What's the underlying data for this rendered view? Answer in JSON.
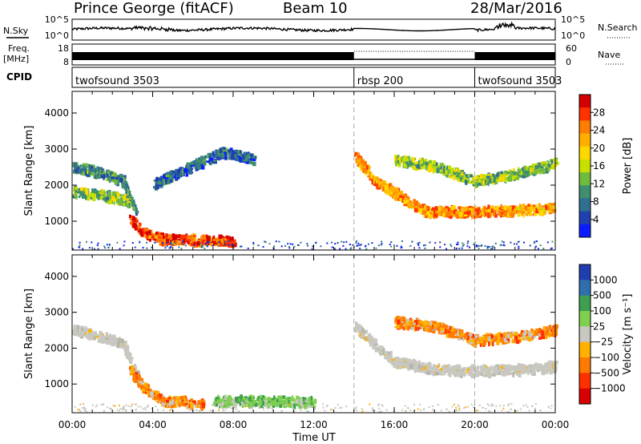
{
  "header": {
    "station": "Prince George (fitACF)",
    "beam": "Beam 10",
    "date": "28/Mar/2016"
  },
  "strip": {
    "nsky_label": "N.Sky",
    "nsky_ticks": [
      "10^5",
      "10^0"
    ],
    "nsearch_label": "N.Search",
    "freq_label_top": "Freq.",
    "freq_label_unit": "[MHz]",
    "freq_ticks": [
      "18",
      "8"
    ],
    "nave_ticks": [
      "60",
      "0"
    ],
    "nave_label": "Nave",
    "cpid_label": "CPID",
    "cpid_segments": [
      {
        "name": "twofsound 3503",
        "start_h": 0,
        "end_h": 14
      },
      {
        "name": "rbsp 200",
        "start_h": 14,
        "end_h": 20
      },
      {
        "name": "twofsound 3503",
        "start_h": 20,
        "end_h": 24
      }
    ]
  },
  "chart_data": [
    {
      "type": "heatmap",
      "title": "",
      "xlabel": "Time UT",
      "ylabel": "Slant Range [km]",
      "xlim": [
        0,
        24
      ],
      "ylim": [
        200,
        4600
      ],
      "x_ticks": [
        "00:00",
        "04:00",
        "08:00",
        "12:00",
        "16:00",
        "20:00",
        "00:00"
      ],
      "y_ticks": [
        1000,
        2000,
        3000,
        4000
      ],
      "colorbar_label": "Power [dB]",
      "colorbar_ticks": [
        "28",
        "24",
        "20",
        "16",
        "12",
        "8",
        "4"
      ],
      "colorbar_colors": [
        "#d40000",
        "#ff3200",
        "#ff7d00",
        "#ffae00",
        "#ffd800",
        "#c8e000",
        "#6fbb3d",
        "#3f8f6f",
        "#2f6f8f",
        "#2040b0",
        "#0a1cff"
      ],
      "scatter_bands": [
        {
          "t": [
            0.0,
            1.5,
            2.5,
            3.2
          ],
          "r": [
            2500,
            2300,
            2100,
            1200
          ],
          "value": 10
        },
        {
          "t": [
            0.0,
            1.5,
            2.8
          ],
          "r": [
            1800,
            1700,
            1550
          ],
          "value": 14
        },
        {
          "t": [
            2.8,
            3.5,
            4.5,
            6.5,
            8.0
          ],
          "r": [
            1100,
            650,
            480,
            460,
            440
          ],
          "value": 26
        },
        {
          "t": [
            4.0,
            5.5,
            7.5,
            9.0
          ],
          "r": [
            2000,
            2400,
            2900,
            2700
          ],
          "value": 8
        },
        {
          "t": [
            14.0,
            15.0,
            16.5,
            17.5,
            20.0,
            23.0,
            24.0
          ],
          "r": [
            2800,
            2100,
            1600,
            1250,
            1250,
            1300,
            1400
          ],
          "value": 22
        },
        {
          "t": [
            16.0,
            18.0,
            20.0,
            22.0,
            24.0
          ],
          "r": [
            2700,
            2500,
            2100,
            2300,
            2600
          ],
          "value": 14
        }
      ]
    },
    {
      "type": "heatmap",
      "title": "",
      "xlabel": "Time UT",
      "ylabel": "Slant Range [km]",
      "xlim": [
        0,
        24
      ],
      "ylim": [
        200,
        4600
      ],
      "x_ticks": [
        "00:00",
        "04:00",
        "08:00",
        "12:00",
        "16:00",
        "20:00",
        "00:00"
      ],
      "y_ticks": [
        1000,
        2000,
        3000,
        4000
      ],
      "colorbar_label": "Velocity [m s⁻¹]",
      "colorbar_ticks": [
        "1000",
        "500",
        "100",
        "25",
        "−25",
        "−100",
        "−500",
        "−1000"
      ],
      "colorbar_colors": [
        "#1f3fb0",
        "#2f6fb0",
        "#3f9f50",
        "#7fd04f",
        "#c8c8c0",
        "#ffb000",
        "#ff7a00",
        "#ff3000",
        "#d80000"
      ],
      "scatter_bands": [
        {
          "t": [
            0.0,
            1.5,
            2.5,
            3.2
          ],
          "r": [
            2500,
            2300,
            2100,
            1200
          ],
          "value": "ground"
        },
        {
          "t": [
            2.8,
            3.5,
            4.5,
            6.5
          ],
          "r": [
            1400,
            900,
            520,
            450
          ],
          "value": -300
        },
        {
          "t": [
            7.0,
            9.5,
            12.0
          ],
          "r": [
            500,
            520,
            480
          ],
          "value": 150
        },
        {
          "t": [
            14.0,
            16.0,
            18.0,
            20.0,
            23.0,
            24.0
          ],
          "r": [
            2600,
            1600,
            1400,
            1350,
            1400,
            1500
          ],
          "value": "ground"
        },
        {
          "t": [
            16.0,
            18.0,
            20.0,
            22.0,
            24.0
          ],
          "r": [
            2700,
            2600,
            2200,
            2300,
            2500
          ],
          "value": -400
        }
      ]
    }
  ],
  "timeseries": {
    "cpid_change_hours": [
      14,
      20
    ],
    "nsearch_note": "dotted line shown 14:00-20:00"
  }
}
